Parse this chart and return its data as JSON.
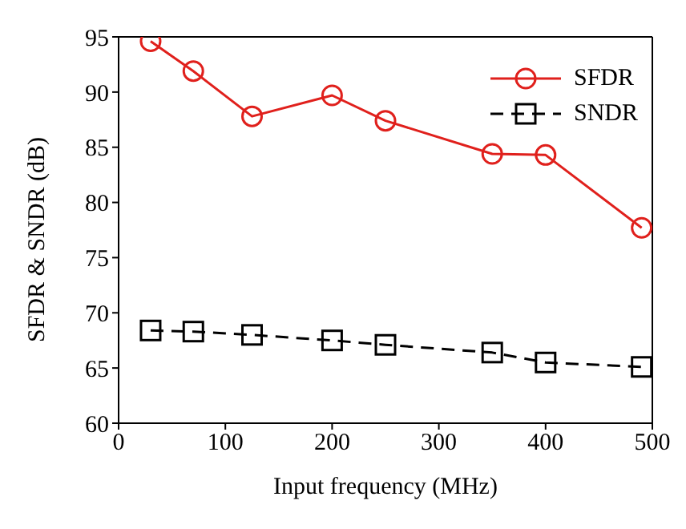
{
  "chart_data": {
    "type": "line",
    "xlabel": "Input frequency (MHz)",
    "ylabel": "SFDR & SNDR (dB)",
    "x": [
      30,
      70,
      125,
      200,
      250,
      350,
      400,
      490
    ],
    "series": [
      {
        "name": "SFDR",
        "color": "#e0201c",
        "marker": "circle",
        "line_style": "solid",
        "values": [
          94.6,
          91.9,
          87.8,
          89.7,
          87.4,
          84.4,
          84.3,
          77.7
        ]
      },
      {
        "name": "SNDR",
        "color": "#000000",
        "marker": "square",
        "line_style": "dashed",
        "values": [
          68.4,
          68.3,
          68.0,
          67.5,
          67.1,
          66.4,
          65.5,
          65.1
        ]
      }
    ],
    "xlim": [
      0,
      500
    ],
    "xticks": [
      0,
      100,
      200,
      300,
      400,
      500
    ],
    "ylim": [
      60,
      95
    ],
    "yticks": [
      60,
      65,
      70,
      75,
      80,
      85,
      90,
      95
    ],
    "grid": false,
    "legend": "top right"
  }
}
